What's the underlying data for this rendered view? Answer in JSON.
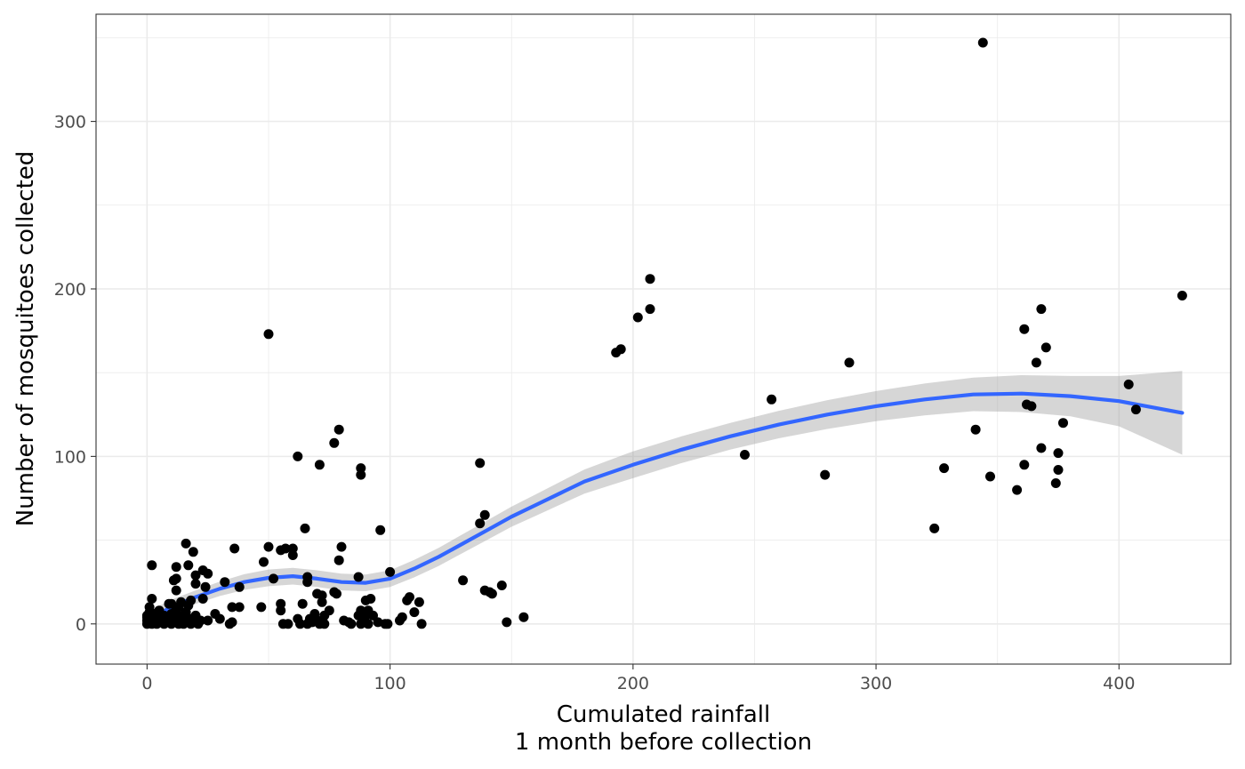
{
  "chart_data": {
    "type": "scatter",
    "title": "",
    "xlabel_lines": [
      "Cumulated rainfall",
      "1 month before collection"
    ],
    "ylabel": "Number of mosquitoes collected",
    "xlim": [
      -21,
      446
    ],
    "ylim": [
      -24,
      364
    ],
    "x_ticks": [
      0,
      100,
      200,
      300,
      400
    ],
    "y_ticks": [
      0,
      100,
      200,
      300
    ],
    "x_tick_labels": [
      "0",
      "100",
      "200",
      "300",
      "400"
    ],
    "y_tick_labels": [
      "0",
      "100",
      "200",
      "300"
    ],
    "grid": true,
    "colors": {
      "points": "#000000",
      "smooth_line": "#3366FF",
      "ribbon": "#999999",
      "grid": "#ebebeb",
      "panel_border": "#333333",
      "tick_text": "#4d4d4d"
    },
    "points": [
      [
        0,
        0
      ],
      [
        0,
        2
      ],
      [
        0,
        4
      ],
      [
        0,
        5
      ],
      [
        1,
        1
      ],
      [
        1,
        3
      ],
      [
        1,
        7
      ],
      [
        1,
        10
      ],
      [
        2,
        0
      ],
      [
        2,
        15
      ],
      [
        2,
        35
      ],
      [
        3,
        2
      ],
      [
        3,
        6
      ],
      [
        4,
        0
      ],
      [
        4,
        3
      ],
      [
        5,
        1
      ],
      [
        5,
        8
      ],
      [
        6,
        2
      ],
      [
        6,
        4
      ],
      [
        7,
        0
      ],
      [
        7,
        5
      ],
      [
        8,
        1
      ],
      [
        8,
        3
      ],
      [
        9,
        2
      ],
      [
        9,
        12
      ],
      [
        10,
        0
      ],
      [
        10,
        6
      ],
      [
        10,
        12
      ],
      [
        11,
        1
      ],
      [
        11,
        26
      ],
      [
        12,
        3
      ],
      [
        12,
        8
      ],
      [
        12,
        20
      ],
      [
        12,
        27
      ],
      [
        12,
        34
      ],
      [
        13,
        0
      ],
      [
        13,
        5
      ],
      [
        13,
        10
      ],
      [
        14,
        2
      ],
      [
        14,
        13
      ],
      [
        15,
        0
      ],
      [
        15,
        4
      ],
      [
        16,
        1
      ],
      [
        16,
        7
      ],
      [
        16,
        48
      ],
      [
        17,
        2
      ],
      [
        17,
        11
      ],
      [
        17,
        35
      ],
      [
        18,
        0
      ],
      [
        18,
        3
      ],
      [
        18,
        14
      ],
      [
        19,
        1
      ],
      [
        19,
        43
      ],
      [
        20,
        5
      ],
      [
        20,
        24
      ],
      [
        20,
        29
      ],
      [
        21,
        0
      ],
      [
        22,
        2
      ],
      [
        23,
        15
      ],
      [
        23,
        32
      ],
      [
        24,
        22
      ],
      [
        25,
        2
      ],
      [
        25,
        30
      ],
      [
        28,
        6
      ],
      [
        30,
        3
      ],
      [
        32,
        25
      ],
      [
        34,
        0
      ],
      [
        35,
        1
      ],
      [
        35,
        10
      ],
      [
        36,
        45
      ],
      [
        38,
        10
      ],
      [
        38,
        22
      ],
      [
        47,
        10
      ],
      [
        48,
        37
      ],
      [
        50,
        173
      ],
      [
        50,
        46
      ],
      [
        52,
        27
      ],
      [
        55,
        12
      ],
      [
        55,
        8
      ],
      [
        55,
        44
      ],
      [
        56,
        0
      ],
      [
        57,
        45
      ],
      [
        58,
        0
      ],
      [
        60,
        45
      ],
      [
        60,
        41
      ],
      [
        62,
        3
      ],
      [
        62,
        100
      ],
      [
        63,
        0
      ],
      [
        64,
        12
      ],
      [
        65,
        57
      ],
      [
        66,
        0
      ],
      [
        66,
        25
      ],
      [
        66,
        28
      ],
      [
        67,
        3
      ],
      [
        68,
        1
      ],
      [
        69,
        6
      ],
      [
        70,
        2
      ],
      [
        70,
        18
      ],
      [
        71,
        0
      ],
      [
        71,
        95
      ],
      [
        72,
        13
      ],
      [
        72,
        17
      ],
      [
        73,
        5
      ],
      [
        73,
        0
      ],
      [
        75,
        8
      ],
      [
        77,
        19
      ],
      [
        77,
        108
      ],
      [
        78,
        18
      ],
      [
        79,
        116
      ],
      [
        79,
        38
      ],
      [
        80,
        46
      ],
      [
        81,
        2
      ],
      [
        83,
        1
      ],
      [
        84,
        0
      ],
      [
        87,
        28
      ],
      [
        87,
        5
      ],
      [
        88,
        93
      ],
      [
        88,
        89
      ],
      [
        88,
        0
      ],
      [
        88,
        8
      ],
      [
        89,
        2
      ],
      [
        90,
        5
      ],
      [
        90,
        14
      ],
      [
        91,
        0
      ],
      [
        91,
        8
      ],
      [
        92,
        15
      ],
      [
        93,
        5
      ],
      [
        95,
        1
      ],
      [
        96,
        56
      ],
      [
        98,
        0
      ],
      [
        99,
        0
      ],
      [
        100,
        31
      ],
      [
        104,
        2
      ],
      [
        105,
        4
      ],
      [
        107,
        14
      ],
      [
        108,
        16
      ],
      [
        110,
        7
      ],
      [
        112,
        13
      ],
      [
        113,
        0
      ],
      [
        130,
        26
      ],
      [
        137,
        60
      ],
      [
        137,
        96
      ],
      [
        139,
        20
      ],
      [
        139,
        65
      ],
      [
        141,
        19
      ],
      [
        142,
        18
      ],
      [
        146,
        23
      ],
      [
        148,
        1
      ],
      [
        155,
        4
      ],
      [
        193,
        162
      ],
      [
        195,
        164
      ],
      [
        202,
        183
      ],
      [
        207,
        188
      ],
      [
        207,
        206
      ],
      [
        246,
        101
      ],
      [
        257,
        134
      ],
      [
        279,
        89
      ],
      [
        289,
        156
      ],
      [
        324,
        57
      ],
      [
        328,
        93
      ],
      [
        341,
        116
      ],
      [
        344,
        347
      ],
      [
        347,
        88
      ],
      [
        358,
        80
      ],
      [
        361,
        95
      ],
      [
        361,
        176
      ],
      [
        362,
        131
      ],
      [
        364,
        130
      ],
      [
        366,
        156
      ],
      [
        368,
        105
      ],
      [
        368,
        188
      ],
      [
        370,
        165
      ],
      [
        374,
        84
      ],
      [
        375,
        92
      ],
      [
        375,
        102
      ],
      [
        377,
        120
      ],
      [
        404,
        143
      ],
      [
        407,
        128
      ],
      [
        426,
        196
      ]
    ],
    "smooth_fit": [
      [
        0,
        2
      ],
      [
        10,
        10
      ],
      [
        20,
        16
      ],
      [
        30,
        21
      ],
      [
        40,
        25
      ],
      [
        50,
        27.5
      ],
      [
        60,
        28.5
      ],
      [
        70,
        27
      ],
      [
        80,
        25
      ],
      [
        90,
        24.5
      ],
      [
        100,
        27
      ],
      [
        110,
        33
      ],
      [
        120,
        40
      ],
      [
        130,
        48
      ],
      [
        140,
        56
      ],
      [
        150,
        64
      ],
      [
        160,
        71
      ],
      [
        170,
        78
      ],
      [
        180,
        85
      ],
      [
        190,
        90
      ],
      [
        200,
        95
      ],
      [
        220,
        104
      ],
      [
        240,
        112
      ],
      [
        260,
        119
      ],
      [
        280,
        125
      ],
      [
        300,
        130
      ],
      [
        320,
        134
      ],
      [
        340,
        137
      ],
      [
        360,
        137.5
      ],
      [
        380,
        136
      ],
      [
        400,
        133
      ],
      [
        426,
        126
      ]
    ],
    "ribbon_half_width": [
      [
        0,
        5
      ],
      [
        20,
        4
      ],
      [
        50,
        5
      ],
      [
        80,
        5
      ],
      [
        100,
        5
      ],
      [
        150,
        6
      ],
      [
        200,
        8
      ],
      [
        250,
        8
      ],
      [
        300,
        9
      ],
      [
        340,
        10
      ],
      [
        380,
        12
      ],
      [
        400,
        15
      ],
      [
        426,
        25
      ]
    ]
  }
}
